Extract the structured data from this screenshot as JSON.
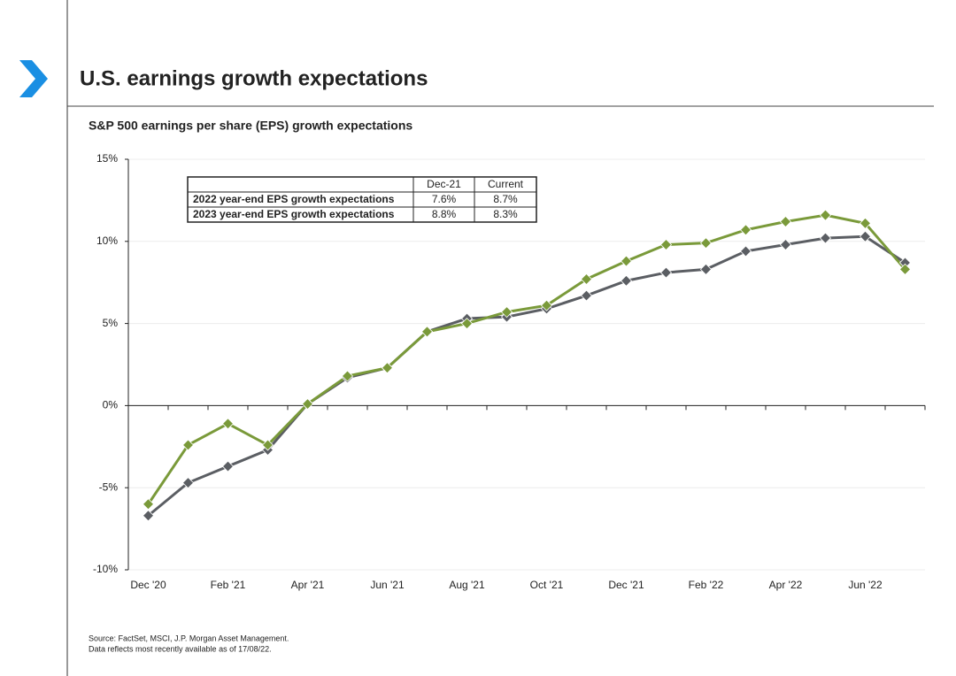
{
  "chart_data": {
    "type": "line",
    "title": "U.S. earnings growth expectations",
    "subtitle": "S&P 500 earnings per share (EPS) growth expectations",
    "categories": [
      "Dec '20",
      null,
      "Feb '21",
      null,
      "Apr '21",
      null,
      "Jun '21",
      null,
      "Aug '21",
      null,
      "Oct '21",
      null,
      "Dec '21",
      null,
      "Feb '22",
      null,
      "Apr '22",
      null,
      "Jun '22",
      null
    ],
    "series": [
      {
        "name": "2022 year-end EPS growth expectations",
        "color": "#5b5e63",
        "values": [
          -6.7,
          -4.7,
          -3.7,
          -2.7,
          0.1,
          1.7,
          2.3,
          4.5,
          5.3,
          5.4,
          5.9,
          6.7,
          7.6,
          8.1,
          8.3,
          9.4,
          9.8,
          10.2,
          10.3,
          8.7
        ]
      },
      {
        "name": "2023 year-end EPS growth expectations",
        "color": "#7a9a3a",
        "values": [
          -6.0,
          -2.4,
          -1.1,
          -2.4,
          0.1,
          1.8,
          2.3,
          4.5,
          5.0,
          5.7,
          6.1,
          7.7,
          8.8,
          9.8,
          9.9,
          10.7,
          11.2,
          11.6,
          11.1,
          8.3
        ]
      }
    ],
    "ylim": [
      -10,
      15
    ],
    "yticks": [
      {
        "value": -10,
        "label": "-10%"
      },
      {
        "value": -5,
        "label": "-5%"
      },
      {
        "value": 0,
        "label": "0%"
      },
      {
        "value": 5,
        "label": "5%"
      },
      {
        "value": 10,
        "label": "10%"
      },
      {
        "value": 15,
        "label": "15%"
      }
    ],
    "grid": true,
    "table": {
      "columns": [
        "Dec-21",
        "Current"
      ],
      "rows": [
        [
          "7.6%",
          "8.7%"
        ],
        [
          "8.8%",
          "8.3%"
        ]
      ]
    },
    "notes": [
      "Source: FactSet, MSCI, J.P. Morgan Asset Management.",
      "Data reflects most recently available as of 17/08/22."
    ]
  }
}
